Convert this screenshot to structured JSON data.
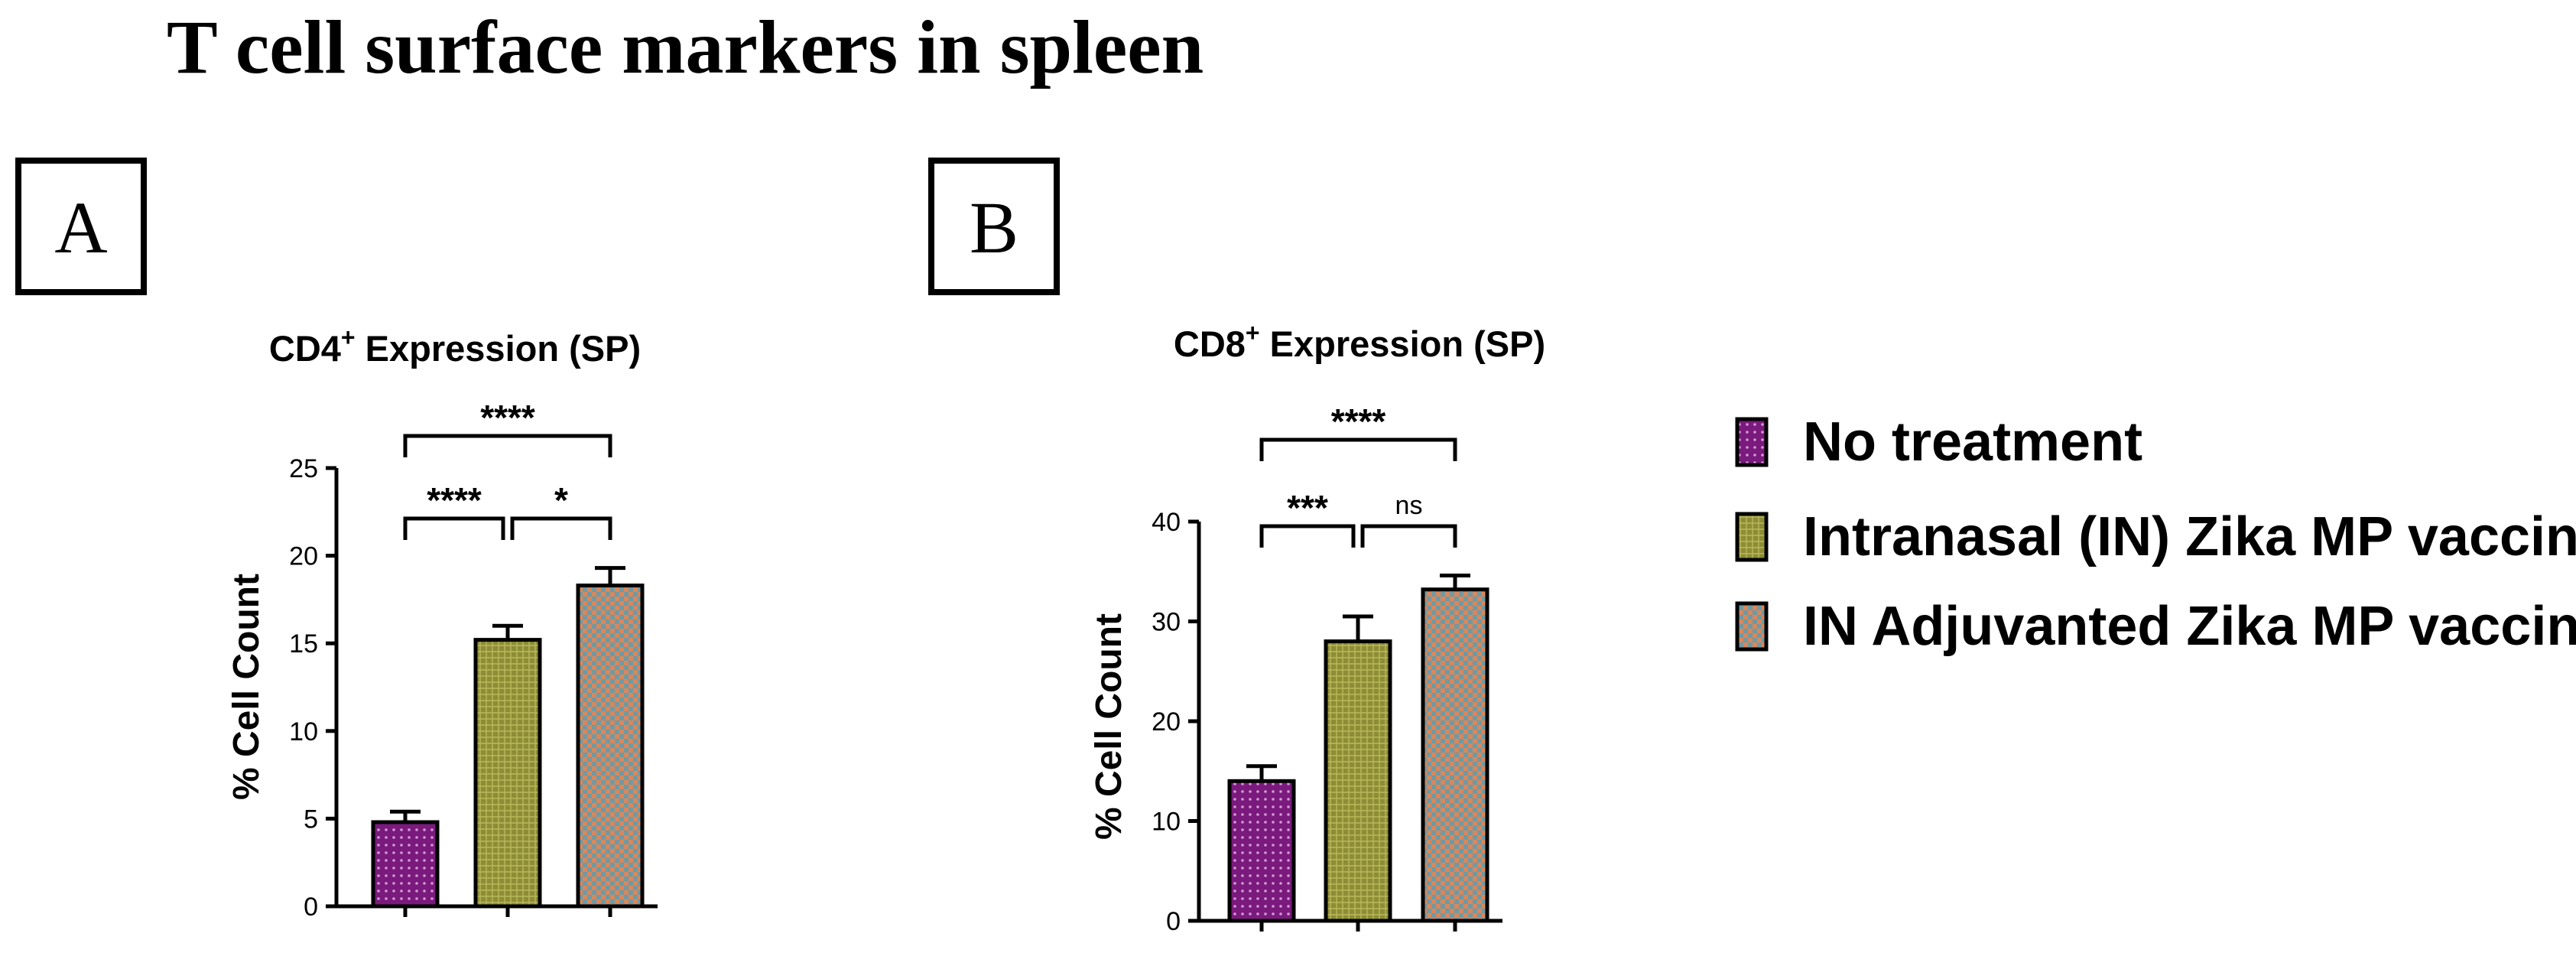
{
  "figure": {
    "title": "T cell surface markers in spleen"
  },
  "colors": {
    "no_treatment": "#7a1a7d",
    "in_vaccine": "#8d8d36",
    "adjuvanted": "#6f9aa3",
    "axis": "#000000"
  },
  "legend": {
    "items": [
      {
        "label": "No treatment",
        "color": "#7a1a7d",
        "pattern": "dots"
      },
      {
        "label": "Intranasal (IN) Zika MP vaccine",
        "color": "#8d8d36",
        "pattern": "mesh"
      },
      {
        "label": "IN Adjuvanted Zika MP vaccine",
        "color": "#6f9aa3",
        "pattern": "checker"
      }
    ]
  },
  "chart_data": [
    {
      "panel": "A",
      "type": "bar",
      "title_main": "CD4",
      "title_sup": "+",
      "title_rest": " Expression (SP)",
      "ylabel": "% Cell Count",
      "ylim": [
        0,
        25
      ],
      "yticks": [
        0,
        5,
        10,
        15,
        20,
        25
      ],
      "categories": [
        "No treatment",
        "Intranasal (IN) Zika MP vaccine",
        "IN Adjuvanted Zika MP vaccine"
      ],
      "values": [
        4.8,
        15.2,
        18.3
      ],
      "errors": [
        0.6,
        0.8,
        1.0
      ],
      "significance": [
        {
          "from": 0,
          "to": 2,
          "label": "****",
          "level": 2
        },
        {
          "from": 0,
          "to": 1,
          "label": "****",
          "level": 1
        },
        {
          "from": 1,
          "to": 2,
          "label": "*",
          "level": 1
        }
      ]
    },
    {
      "panel": "B",
      "type": "bar",
      "title_main": "CD8",
      "title_sup": "+",
      "title_rest": " Expression (SP)",
      "ylabel": "% Cell Count",
      "ylim": [
        0,
        40
      ],
      "yticks": [
        0,
        10,
        20,
        30,
        40
      ],
      "categories": [
        "No treatment",
        "Intranasal (IN) Zika MP vaccine",
        "IN Adjuvanted Zika MP vaccine"
      ],
      "values": [
        14.0,
        28.0,
        33.2
      ],
      "errors": [
        1.5,
        2.5,
        1.4
      ],
      "significance": [
        {
          "from": 0,
          "to": 2,
          "label": "****",
          "level": 2
        },
        {
          "from": 0,
          "to": 1,
          "label": "***",
          "level": 1
        },
        {
          "from": 1,
          "to": 2,
          "label": "ns",
          "level": 1
        }
      ]
    }
  ]
}
